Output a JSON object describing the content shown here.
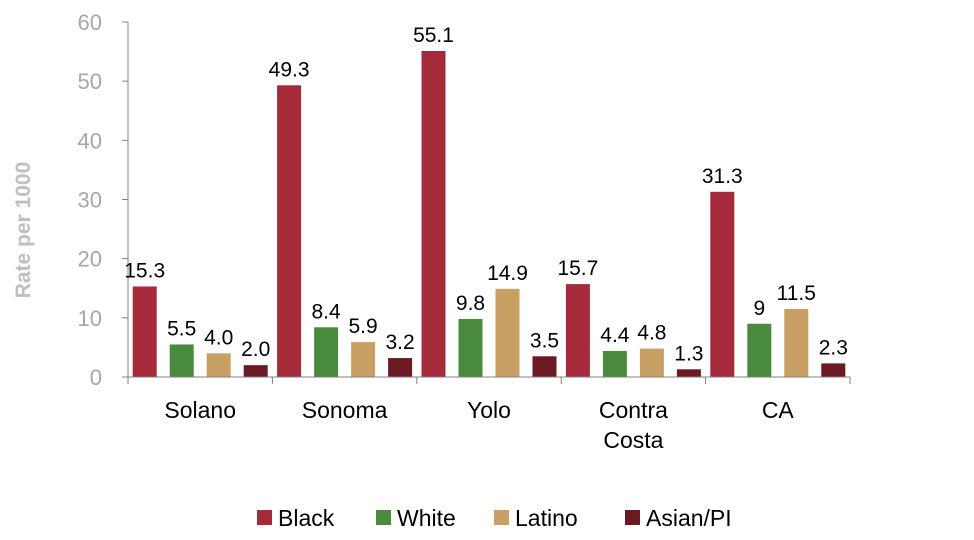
{
  "chart_data": {
    "type": "bar",
    "title": "",
    "xlabel": "",
    "ylabel": "Rate per 1000",
    "ylim": [
      0,
      60
    ],
    "yticks": [
      "0",
      "10",
      "20",
      "30",
      "40",
      "50",
      "60"
    ],
    "categories": [
      "Solano",
      "Sonoma",
      "Yolo",
      "Contra Costa",
      "CA"
    ],
    "series": [
      {
        "name": "Black",
        "color": "#a52a3a",
        "values": [
          15.3,
          49.3,
          55.1,
          15.7,
          31.3
        ],
        "labels": [
          "15.3",
          "49.3",
          "55.1",
          "15.7",
          "31.3"
        ]
      },
      {
        "name": "White",
        "color": "#4a8a3f",
        "values": [
          5.5,
          8.4,
          9.8,
          4.4,
          9
        ],
        "labels": [
          "5.5",
          "8.4",
          "9.8",
          "4.4",
          "9"
        ]
      },
      {
        "name": "Latino",
        "color": "#c9a063",
        "values": [
          4.0,
          5.9,
          14.9,
          4.8,
          11.5
        ],
        "labels": [
          "4.0",
          "5.9",
          "14.9",
          "4.8",
          "11.5"
        ]
      },
      {
        "name": "Asian/PI",
        "color": "#6b1a22",
        "values": [
          2.0,
          3.2,
          3.5,
          1.3,
          2.3
        ],
        "labels": [
          "2.0",
          "3.2",
          "3.5",
          "1.3",
          "2.3"
        ]
      }
    ],
    "grid": false,
    "legend_position": "bottom"
  }
}
